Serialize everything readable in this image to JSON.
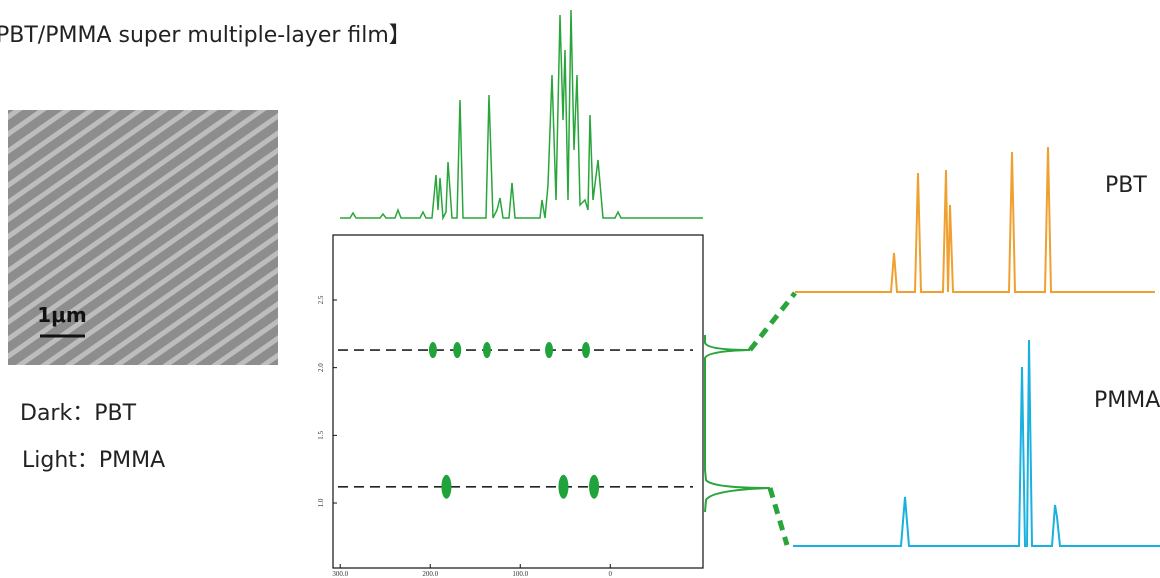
{
  "title": "PBT/PMMA super multiple-layer film】",
  "image": {
    "scale_bar": "1μm"
  },
  "legend": [
    "Dark：PBT",
    "Light：PMMA"
  ],
  "spectra": [
    {
      "label": "PBT"
    },
    {
      "label": "PMMA"
    }
  ],
  "plot": {
    "xlim": [
      308,
      -103
    ],
    "ylim": [
      0.52,
      2.98
    ],
    "xticks": [
      {
        "value": 300,
        "label": "300.0"
      },
      {
        "value": 200,
        "label": "200.0"
      },
      {
        "value": 100,
        "label": "100.0"
      },
      0
    ],
    "yticks": [
      {
        "value": 1,
        "label": "1.0"
      },
      {
        "value": 1.5,
        "label": "1.5"
      },
      {
        "value": 2,
        "label": "2.0"
      },
      2.5
    ],
    "rows": [
      {
        "y": 2.13,
        "peaks": [
          197,
          170,
          137,
          68,
          27
        ]
      },
      {
        "y": 1.12,
        "peaks": [
          182,
          52,
          18
        ]
      }
    ]
  }
}
